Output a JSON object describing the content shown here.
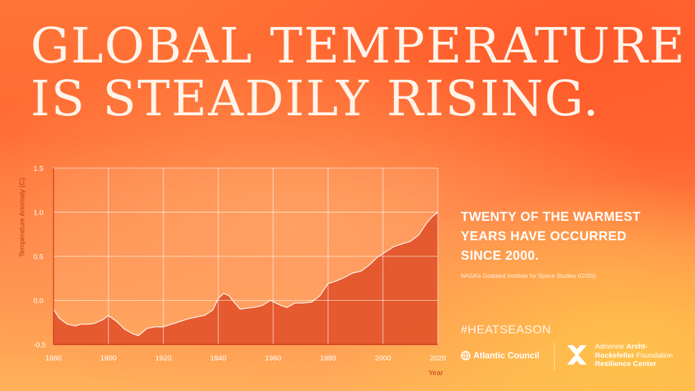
{
  "headline": {
    "line1": "GLOBAL TEMPERATURE",
    "line2": "IS STEADILY RISING."
  },
  "side": {
    "headline": "TWENTY OF THE WARMEST YEARS HAVE OCCURRED SINCE 2000.",
    "source": "NASA's Goddard Institute for Space Studies (GISS)"
  },
  "footer": {
    "hashtag": "#HEATSEASON",
    "atlantic_council": "Atlantic Council",
    "arsht_line1_light": "Adrienne ",
    "arsht_line1_bold": "Arsht-",
    "arsht_line2_bold": "Rockefeller",
    "arsht_line2_light": " Foundation",
    "arsht_line3": "Resilience Center"
  },
  "colors": {
    "area_fill": "#e3542a",
    "accent_red": "#c6391a",
    "grid": "#ffffff"
  },
  "chart_data": {
    "type": "area",
    "xlabel": "Year",
    "ylabel": "Temperature Anomaly (C)",
    "xlim": [
      1880,
      2020
    ],
    "ylim": [
      -0.5,
      1.5
    ],
    "x_ticks": [
      1880,
      1900,
      1920,
      1940,
      1960,
      1980,
      2000,
      2020
    ],
    "y_ticks": [
      -0.5,
      0.0,
      0.5,
      1.0,
      1.5
    ],
    "y_tick_labels": [
      "-0.5",
      "0.0",
      "0.5",
      "1.0",
      "1.5"
    ],
    "grid": true,
    "series": [
      {
        "x": [
          1880,
          1882,
          1885,
          1888,
          1890,
          1893,
          1895,
          1898,
          1900,
          1903,
          1906,
          1909,
          1911,
          1914,
          1917,
          1920,
          1923,
          1926,
          1929,
          1932,
          1935,
          1938,
          1940,
          1942,
          1944,
          1946,
          1948,
          1950,
          1953,
          1956,
          1959,
          1961,
          1963,
          1965,
          1968,
          1971,
          1974,
          1977,
          1980,
          1983,
          1986,
          1989,
          1992,
          1995,
          1998,
          2001,
          2004,
          2007,
          2010,
          2013,
          2016,
          2018,
          2020
        ],
        "y": [
          -0.1,
          -0.2,
          -0.27,
          -0.29,
          -0.27,
          -0.27,
          -0.26,
          -0.22,
          -0.17,
          -0.24,
          -0.33,
          -0.38,
          -0.4,
          -0.32,
          -0.3,
          -0.3,
          -0.27,
          -0.24,
          -0.21,
          -0.19,
          -0.17,
          -0.11,
          0.02,
          0.08,
          0.05,
          -0.03,
          -0.1,
          -0.09,
          -0.08,
          -0.06,
          0.0,
          -0.03,
          -0.06,
          -0.08,
          -0.03,
          -0.03,
          -0.02,
          0.05,
          0.19,
          0.22,
          0.26,
          0.31,
          0.33,
          0.4,
          0.49,
          0.55,
          0.61,
          0.64,
          0.67,
          0.74,
          0.88,
          0.95,
          1.0
        ]
      }
    ]
  }
}
